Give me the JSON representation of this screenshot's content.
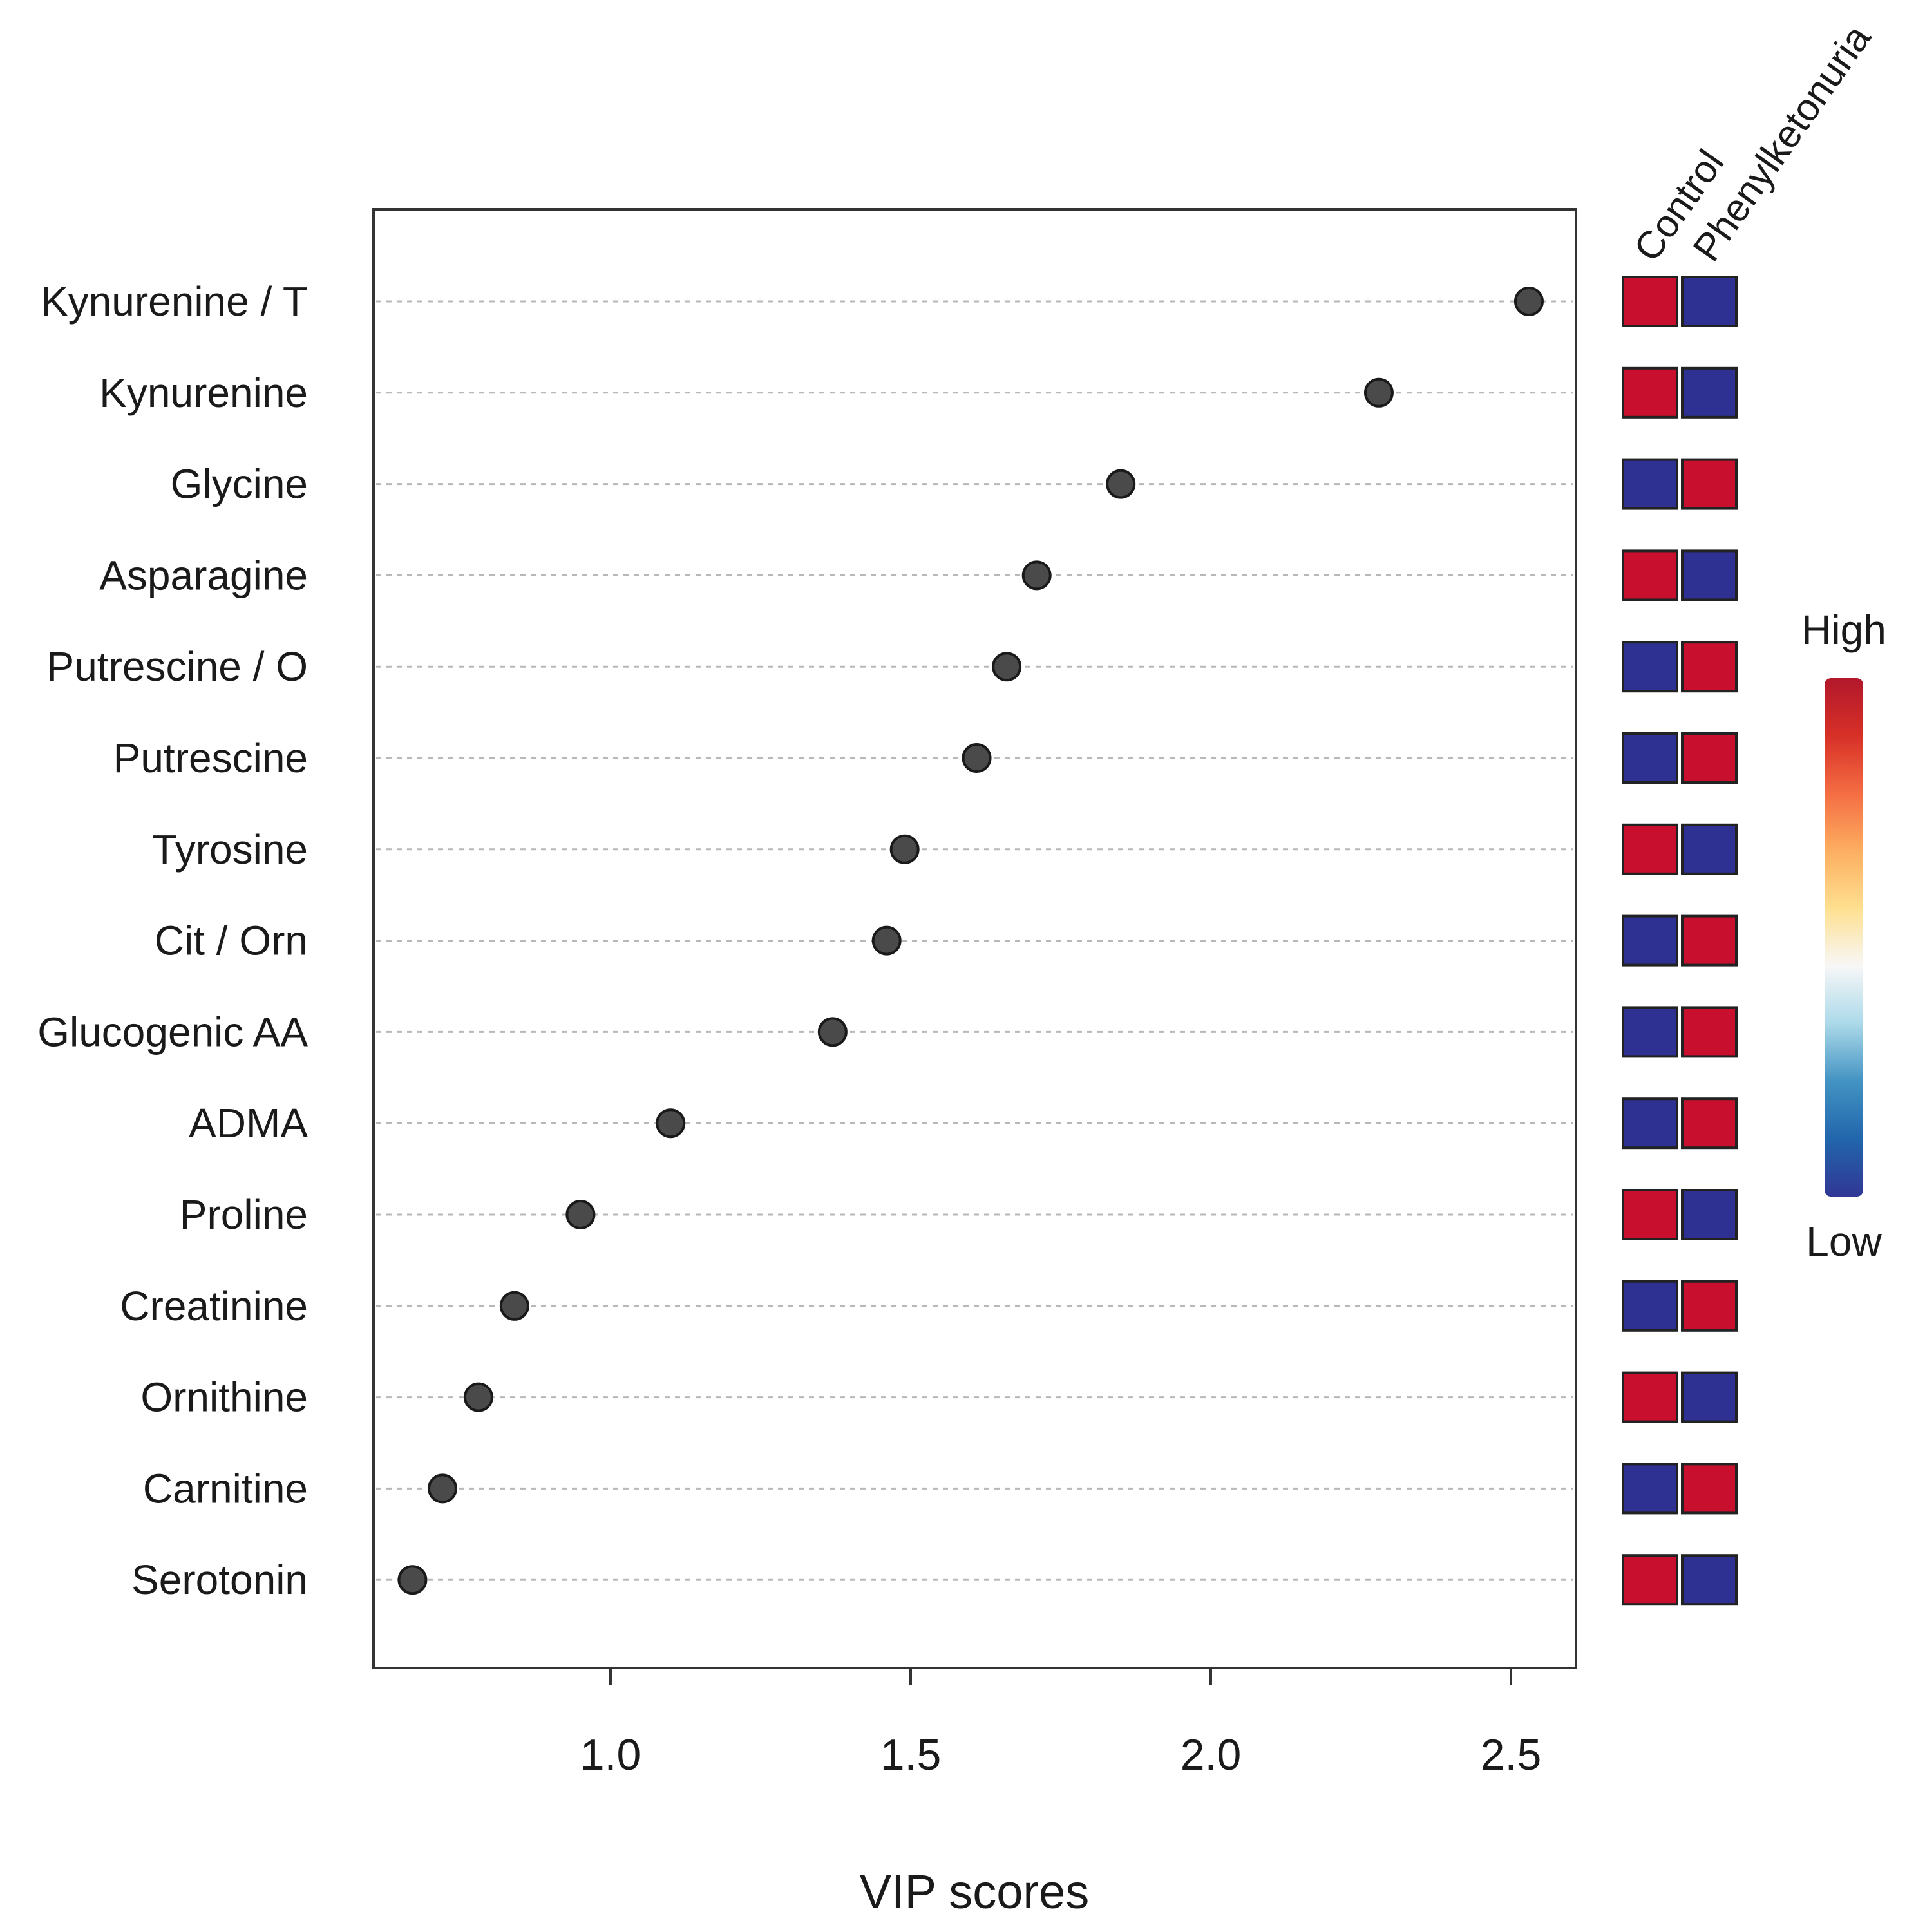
{
  "chart_data": {
    "type": "scatter",
    "xlabel": "VIP scores",
    "ylabel": "",
    "xlim": [
      0.6,
      2.6
    ],
    "xticks": [
      "1.0",
      "1.5",
      "2.0",
      "2.5"
    ],
    "xtick_values": [
      1.0,
      1.5,
      2.0,
      2.5
    ],
    "grid": "horizontal dashed",
    "groups": [
      "Control",
      "Phenylketonuria"
    ],
    "legend": {
      "high_label": "High",
      "low_label": "Low",
      "placement": "right",
      "colors": [
        "#b2182b",
        "#d73027",
        "#f46d43",
        "#fdae61",
        "#fee090",
        "#f7f7f7",
        "#abd9e9",
        "#4393c3",
        "#2166ac",
        "#313695"
      ]
    },
    "high_color": "#c8102e",
    "low_color": "#2e3192",
    "metabolites": [
      {
        "name": "Kynurenine / T",
        "vip": 2.53,
        "levels": [
          "High",
          "Low"
        ]
      },
      {
        "name": "Kynurenine",
        "vip": 2.28,
        "levels": [
          "High",
          "Low"
        ]
      },
      {
        "name": "Glycine",
        "vip": 1.85,
        "levels": [
          "Low",
          "High"
        ]
      },
      {
        "name": "Asparagine",
        "vip": 1.71,
        "levels": [
          "High",
          "Low"
        ]
      },
      {
        "name": "Putrescine / O",
        "vip": 1.66,
        "levels": [
          "Low",
          "High"
        ]
      },
      {
        "name": "Putrescine",
        "vip": 1.61,
        "levels": [
          "Low",
          "High"
        ]
      },
      {
        "name": "Tyrosine",
        "vip": 1.49,
        "levels": [
          "High",
          "Low"
        ]
      },
      {
        "name": "Cit / Orn",
        "vip": 1.46,
        "levels": [
          "Low",
          "High"
        ]
      },
      {
        "name": "Glucogenic AA",
        "vip": 1.37,
        "levels": [
          "Low",
          "High"
        ]
      },
      {
        "name": "ADMA",
        "vip": 1.1,
        "levels": [
          "Low",
          "High"
        ]
      },
      {
        "name": "Proline",
        "vip": 0.95,
        "levels": [
          "High",
          "Low"
        ]
      },
      {
        "name": "Creatinine",
        "vip": 0.84,
        "levels": [
          "Low",
          "High"
        ]
      },
      {
        "name": "Ornithine",
        "vip": 0.78,
        "levels": [
          "High",
          "Low"
        ]
      },
      {
        "name": "Carnitine",
        "vip": 0.72,
        "levels": [
          "Low",
          "High"
        ]
      },
      {
        "name": "Serotonin",
        "vip": 0.67,
        "levels": [
          "High",
          "Low"
        ]
      }
    ]
  }
}
